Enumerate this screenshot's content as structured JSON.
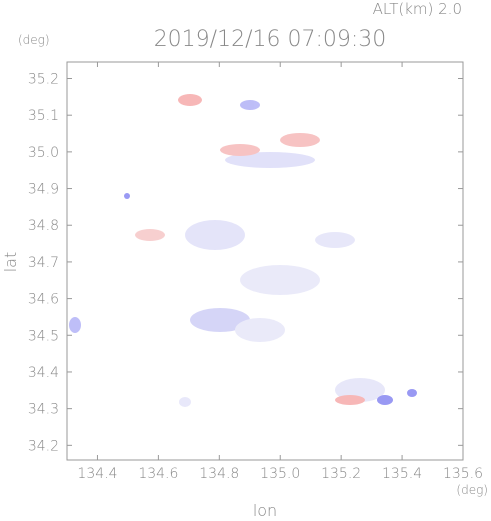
{
  "chart_data": {
    "type": "map",
    "title": "2019/12/16 07:09:30",
    "subtitle": "ALT(km) 2.0",
    "x_label": "lon",
    "x_unit": "(deg)",
    "y_label": "lat",
    "y_unit": "(deg)",
    "xlim": [
      134.3,
      135.6
    ],
    "xticks": [
      {
        "value": 134.4,
        "label": "134.4"
      },
      {
        "value": 134.6,
        "label": "134.6"
      },
      {
        "value": 134.8,
        "label": "134.8"
      },
      {
        "value": 135.0,
        "label": "135.0"
      },
      {
        "value": 135.2,
        "label": "135.2"
      },
      {
        "value": 135.4,
        "label": "135.4"
      },
      {
        "value": 135.6,
        "label": "135.6"
      }
    ],
    "ylim": [
      34.16,
      35.245
    ],
    "yticks": [
      {
        "value": 34.2,
        "label": "34.2"
      },
      {
        "value": 34.3,
        "label": "34.3"
      },
      {
        "value": 34.4,
        "label": "34.4"
      },
      {
        "value": 34.5,
        "label": "34.5"
      },
      {
        "value": 34.6,
        "label": "34.6"
      },
      {
        "value": 34.7,
        "label": "34.7"
      },
      {
        "value": 34.8,
        "label": "34.8"
      },
      {
        "value": 34.9,
        "label": "34.9"
      },
      {
        "value": 35.0,
        "label": "35.0"
      },
      {
        "value": 35.1,
        "label": "35.1"
      },
      {
        "value": 35.2,
        "label": "35.2"
      }
    ]
  }
}
